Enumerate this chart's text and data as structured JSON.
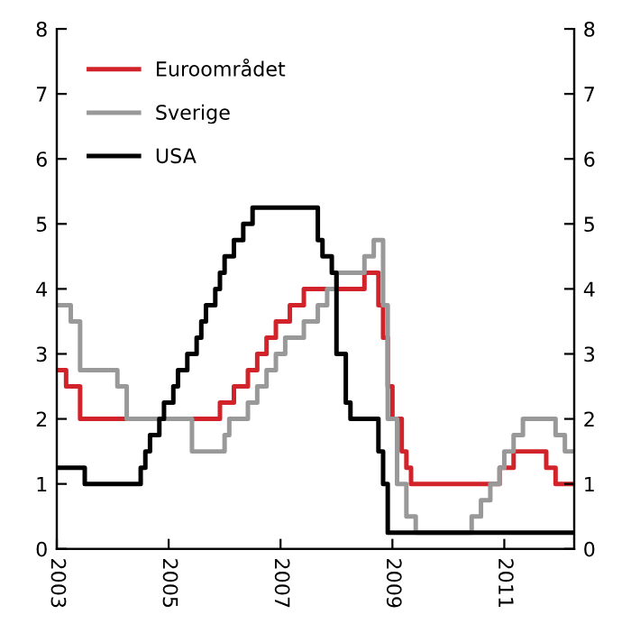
{
  "chart_data": {
    "type": "step",
    "xlim": [
      "2003-01",
      "2012-04"
    ],
    "xticks": [
      {
        "value": "2003-01",
        "label": "2003"
      },
      {
        "value": "2005-01",
        "label": "2005"
      },
      {
        "value": "2007-01",
        "label": "2007"
      },
      {
        "value": "2009-01",
        "label": "2009"
      },
      {
        "value": "2011-01",
        "label": "2011"
      }
    ],
    "ylim": [
      0,
      8
    ],
    "yticks": [
      0,
      1,
      2,
      3,
      4,
      5,
      6,
      7,
      8
    ],
    "y2lim": [
      0,
      8
    ],
    "y2ticks": [
      0,
      1,
      2,
      3,
      4,
      5,
      6,
      7,
      8
    ],
    "grid": false,
    "legend": "top left",
    "marker": "none",
    "line_style": "solid",
    "series": [
      {
        "name": "Euroområdet",
        "color": "#d2232a",
        "x": [
          "2003-01",
          "2003-03",
          "2003-06",
          "2005-12",
          "2006-03",
          "2006-06",
          "2006-08",
          "2006-10",
          "2006-12",
          "2007-03",
          "2007-06",
          "2008-07",
          "2008-10",
          "2008-11",
          "2008-12",
          "2009-01",
          "2009-03",
          "2009-04",
          "2009-05",
          "2010-12",
          "2011-03",
          "2011-10",
          "2011-12",
          "2012-04"
        ],
        "values": [
          2.75,
          2.5,
          2.0,
          2.25,
          2.5,
          2.75,
          3.0,
          3.25,
          3.5,
          3.75,
          4.0,
          4.25,
          3.75,
          3.25,
          2.5,
          2.0,
          1.5,
          1.25,
          1.0,
          1.25,
          1.5,
          1.25,
          1.0,
          1.0
        ]
      },
      {
        "name": "Sverige",
        "color": "#999999",
        "x": [
          "2003-01",
          "2003-04",
          "2003-06",
          "2004-02",
          "2004-04",
          "2005-06",
          "2006-01",
          "2006-02",
          "2006-06",
          "2006-08",
          "2006-10",
          "2006-12",
          "2007-02",
          "2007-06",
          "2007-09",
          "2007-11",
          "2008-01",
          "2008-07",
          "2008-09",
          "2008-11",
          "2008-12",
          "2009-02",
          "2009-04",
          "2009-06",
          "2010-06",
          "2010-08",
          "2010-10",
          "2010-12",
          "2011-01",
          "2011-03",
          "2011-05",
          "2011-12",
          "2012-02",
          "2012-04"
        ],
        "values": [
          3.75,
          3.5,
          2.75,
          2.5,
          2.0,
          1.5,
          1.75,
          2.0,
          2.25,
          2.5,
          2.75,
          3.0,
          3.25,
          3.5,
          3.75,
          4.0,
          4.25,
          4.5,
          4.75,
          3.75,
          2.0,
          1.0,
          0.5,
          0.25,
          0.5,
          0.75,
          1.0,
          1.25,
          1.5,
          1.75,
          2.0,
          1.75,
          1.5,
          1.5
        ]
      },
      {
        "name": "USA",
        "color": "#000000",
        "x": [
          "2003-01",
          "2003-07",
          "2004-07",
          "2004-08",
          "2004-09",
          "2004-11",
          "2004-12",
          "2005-02",
          "2005-03",
          "2005-05",
          "2005-07",
          "2005-08",
          "2005-09",
          "2005-11",
          "2005-12",
          "2006-01",
          "2006-03",
          "2006-05",
          "2006-07",
          "2007-09",
          "2007-10",
          "2007-12",
          "2008-01",
          "2008-03",
          "2008-04",
          "2008-10",
          "2008-11",
          "2008-12",
          "2012-04"
        ],
        "values": [
          1.25,
          1.0,
          1.25,
          1.5,
          1.75,
          2.0,
          2.25,
          2.5,
          2.75,
          3.0,
          3.25,
          3.5,
          3.75,
          4.0,
          4.25,
          4.5,
          4.75,
          5.0,
          5.25,
          4.75,
          4.5,
          4.25,
          3.0,
          2.25,
          2.0,
          1.5,
          1.0,
          0.25,
          0.25
        ]
      }
    ]
  }
}
